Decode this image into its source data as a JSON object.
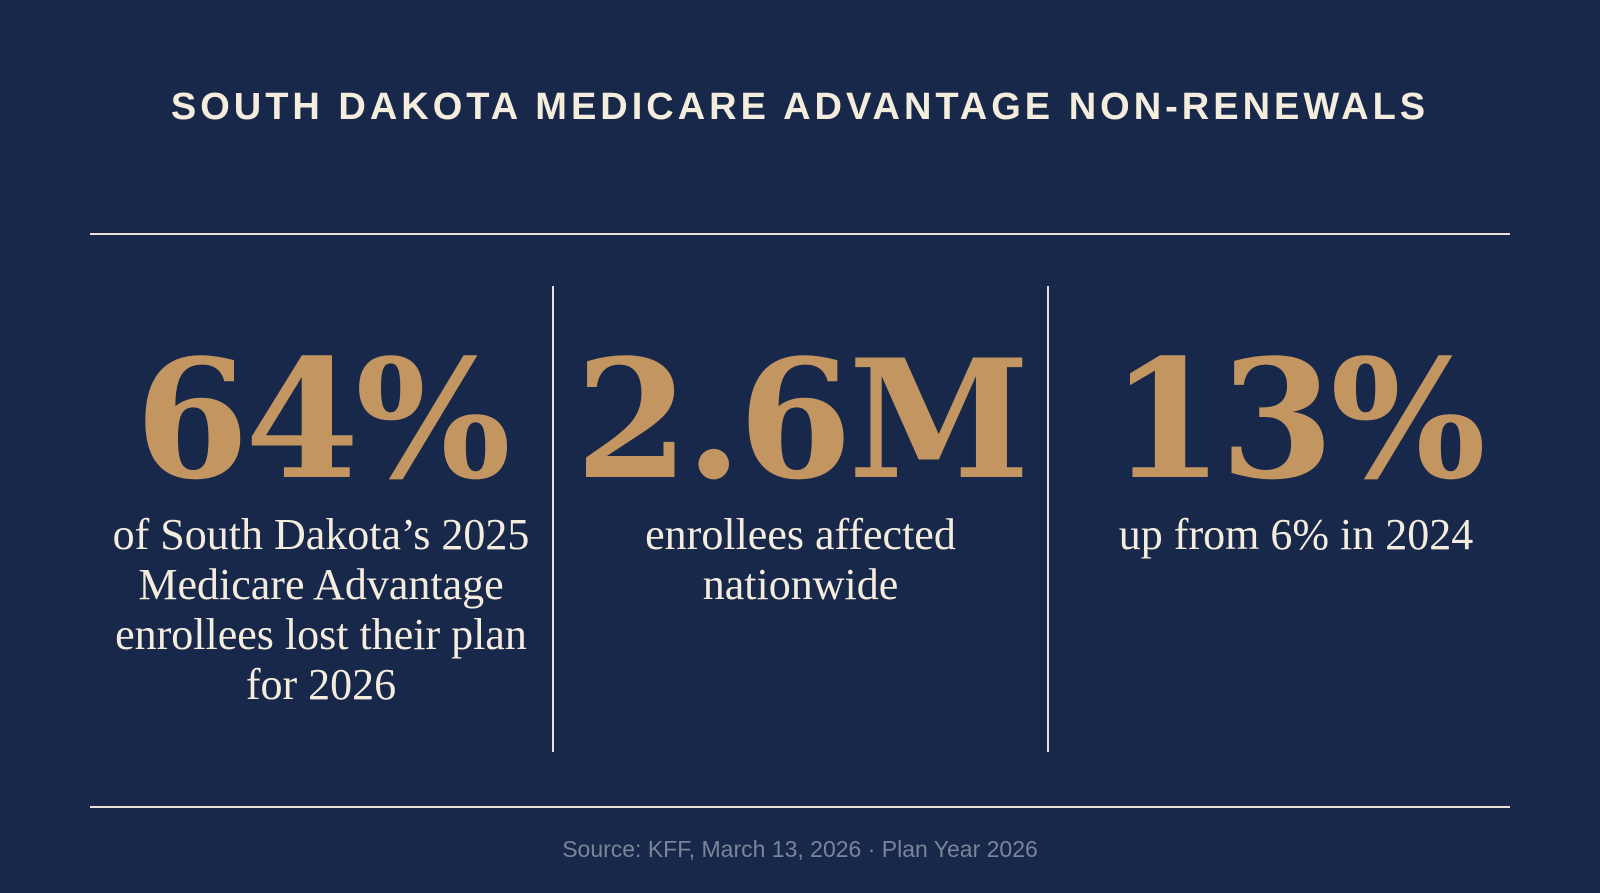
{
  "title": "SOUTH DAKOTA MEDICARE ADVANTAGE NON-RENEWALS",
  "stats": [
    {
      "value": "64%",
      "description": "of South Dakota’s 2025 Medicare Advantage enrollees lost their plan for 2026"
    },
    {
      "value": "2.6M",
      "description": "enrollees affected nationwide"
    },
    {
      "value": "13%",
      "description": "up from 6% in 2024"
    }
  ],
  "source": "Source: KFF, March 13, 2026 · Plan Year 2026",
  "colors": {
    "background": "#17284a",
    "accent": "#c39561",
    "text": "#f4ecdd",
    "muted": "#7b8499"
  }
}
